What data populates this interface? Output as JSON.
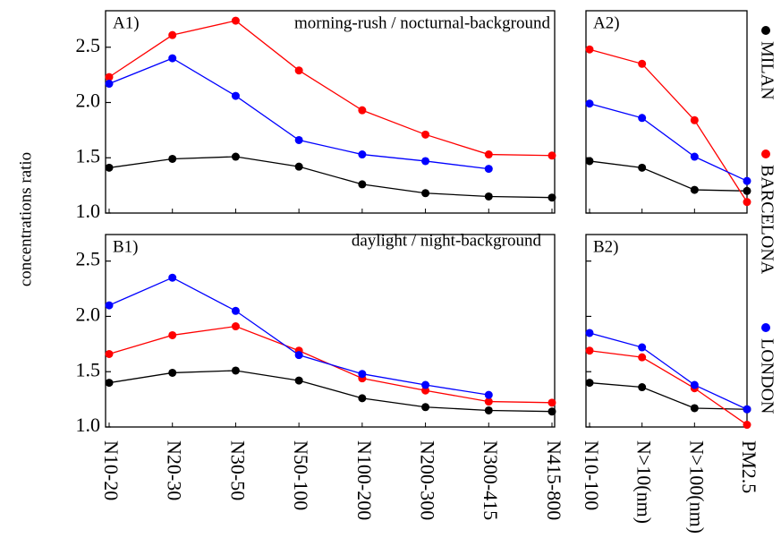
{
  "chart_data": [
    {
      "type": "line",
      "label": "A1)",
      "title": "morning-rush / nocturnal-background",
      "ylabel": "concentrations ratio",
      "legend": "right",
      "ylim": [
        1.0,
        2.83
      ],
      "yticks": [
        {
          "value": 1.0,
          "label": "1.0"
        },
        1.5,
        {
          "value": 2.0,
          "label": "2.0"
        },
        2.5
      ],
      "ytick_labels": true,
      "series": [
        {
          "name": "MILAN",
          "color": "#000000",
          "values": [
            1.41,
            1.49,
            1.51,
            1.42,
            1.26,
            1.18,
            1.15,
            1.14
          ]
        },
        {
          "name": "BARCELONA",
          "color": "#ff0000",
          "values": [
            2.23,
            2.61,
            2.74,
            2.29,
            1.93,
            1.71,
            1.53,
            1.52
          ]
        },
        {
          "name": "LONDON",
          "color": "#0000ff",
          "values": [
            2.17,
            2.4,
            2.06,
            1.66,
            1.53,
            1.47,
            1.4,
            null
          ]
        }
      ]
    },
    {
      "type": "line",
      "label": "A2)",
      "ylim": [
        1.0,
        2.83
      ],
      "yticks": [
        1.0,
        1.5,
        2.0,
        2.5
      ],
      "ytick_labels": false,
      "series": [
        {
          "name": "MILAN",
          "color": "#000000",
          "values": [
            1.47,
            1.41,
            1.21,
            1.2
          ]
        },
        {
          "name": "BARCELONA",
          "color": "#ff0000",
          "values": [
            2.48,
            2.35,
            1.84,
            1.1
          ]
        },
        {
          "name": "LONDON",
          "color": "#0000ff",
          "values": [
            1.99,
            1.86,
            1.51,
            1.29
          ]
        }
      ]
    },
    {
      "type": "line",
      "label": "B1)",
      "title": "daylight / night-background",
      "categories": [
        "N10-20",
        "N20-30",
        "N30-50",
        "N50-100",
        "N100-200",
        "N200-300",
        "N300-415",
        "N415-800"
      ],
      "ylim": [
        1.0,
        2.74
      ],
      "yticks": [
        {
          "value": 1.0,
          "label": "1.0"
        },
        1.5,
        {
          "value": 2.0,
          "label": "2.0"
        },
        2.5
      ],
      "ytick_labels": true,
      "series": [
        {
          "name": "MILAN",
          "color": "#000000",
          "values": [
            1.4,
            1.49,
            1.51,
            1.42,
            1.26,
            1.18,
            1.15,
            1.14
          ]
        },
        {
          "name": "BARCELONA",
          "color": "#ff0000",
          "values": [
            1.66,
            1.83,
            1.91,
            1.69,
            1.44,
            1.33,
            1.23,
            1.22
          ]
        },
        {
          "name": "LONDON",
          "color": "#0000ff",
          "values": [
            2.1,
            2.35,
            2.05,
            1.65,
            1.48,
            1.38,
            1.29,
            null
          ]
        }
      ]
    },
    {
      "type": "line",
      "label": "B2)",
      "categories": [
        "N10-100",
        "N>10(nm)",
        "N>100(nm)",
        "PM2.5"
      ],
      "ylim": [
        1.0,
        2.74
      ],
      "yticks": [
        1.0,
        1.5,
        2.0,
        2.5
      ],
      "ytick_labels": false,
      "series": [
        {
          "name": "MILAN",
          "color": "#000000",
          "values": [
            1.4,
            1.36,
            1.17,
            1.16
          ]
        },
        {
          "name": "BARCELONA",
          "color": "#ff0000",
          "values": [
            1.69,
            1.63,
            1.35,
            1.02
          ]
        },
        {
          "name": "LONDON",
          "color": "#0000ff",
          "values": [
            1.85,
            1.72,
            1.38,
            1.16
          ]
        }
      ]
    }
  ]
}
